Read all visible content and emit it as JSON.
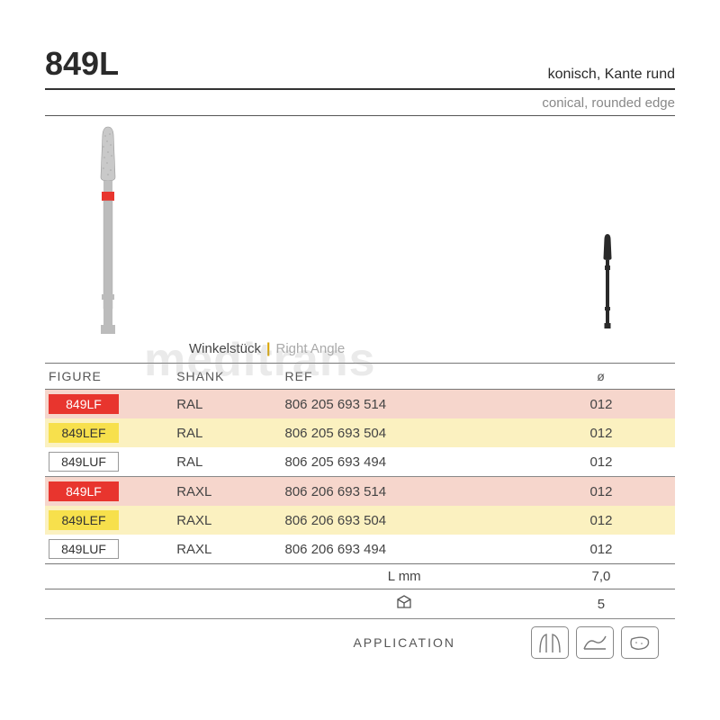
{
  "header": {
    "code": "849L",
    "subtitle_de": "konisch, Kante rund",
    "subtitle_en": "conical, rounded edge"
  },
  "watermark": "meditrans",
  "section": {
    "label_de": "Winkelstück",
    "label_en": "Right Angle"
  },
  "table": {
    "headers": {
      "figure": "FIGURE",
      "shank": "SHANK",
      "ref": "REF",
      "dia": "ø"
    },
    "rows": [
      {
        "figure": "849LF",
        "badge_bg": "#e8352e",
        "badge_fg": "#ffffff",
        "row_bg": "#f6d6cc",
        "shank": "RAL",
        "ref": "806 205 693 514",
        "dia": "012"
      },
      {
        "figure": "849LEF",
        "badge_bg": "#f7e04c",
        "badge_fg": "#333333",
        "row_bg": "#fbf1c0",
        "shank": "RAL",
        "ref": "806 205 693 504",
        "dia": "012"
      },
      {
        "figure": "849LUF",
        "badge_bg": "#ffffff",
        "badge_fg": "#333333",
        "row_bg": "#ffffff",
        "shank": "RAL",
        "ref": "806 205 693 494",
        "dia": "012"
      },
      {
        "figure": "849LF",
        "badge_bg": "#e8352e",
        "badge_fg": "#ffffff",
        "row_bg": "#f6d6cc",
        "shank": "RAXL",
        "ref": "806 206 693 514",
        "dia": "012"
      },
      {
        "figure": "849LEF",
        "badge_bg": "#f7e04c",
        "badge_fg": "#333333",
        "row_bg": "#fbf1c0",
        "shank": "RAXL",
        "ref": "806 206 693 504",
        "dia": "012"
      },
      {
        "figure": "849LUF",
        "badge_bg": "#ffffff",
        "badge_fg": "#333333",
        "row_bg": "#ffffff",
        "shank": "RAXL",
        "ref": "806 206 693 494",
        "dia": "012"
      }
    ],
    "footer": {
      "length_label": "L mm",
      "length_value": "7,0",
      "pack_icon": "◫",
      "pack_value": "5",
      "application_label": "APPLICATION"
    }
  },
  "colors": {
    "rule": "#333333",
    "text": "#3a3a3a",
    "muted": "#888888",
    "accent": "#d9a400"
  }
}
